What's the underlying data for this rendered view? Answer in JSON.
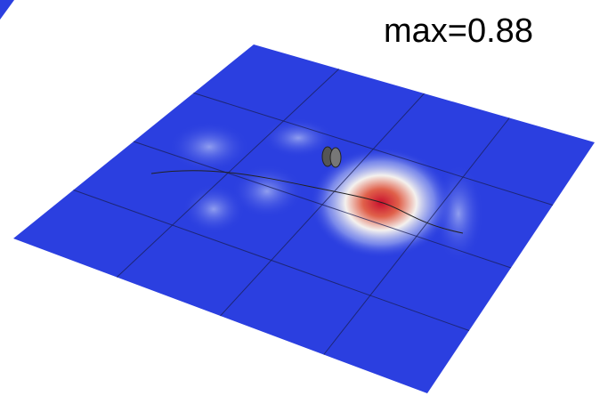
{
  "annotation": "max=0.88"
}
